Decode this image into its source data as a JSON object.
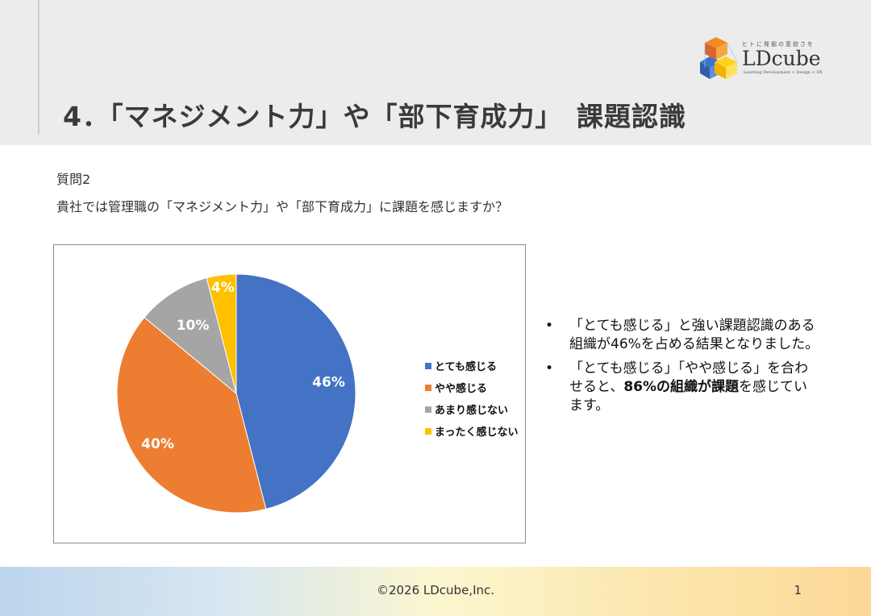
{
  "slide": {
    "title": "4．「マネジメント力」や「部下育成力」　課題認識",
    "logo": {
      "name": "LDcube",
      "tagline": "ヒトに発掘の意欲さを",
      "sub": "Learning Development × Design × DX"
    },
    "question_label": "質問2",
    "question_text": "貴社では管理職の「マネジメント力」や「部下育成力」に課題を感じますか？",
    "bullets": [
      {
        "marker": "•",
        "parts": [
          {
            "text": "「とても感じる」と強い課題認識のある組織が46%を占める結果となりました。",
            "bold": false
          }
        ]
      },
      {
        "marker": "•",
        "parts": [
          {
            "text": "「とても感じる」「やや感じる」を合わせると、",
            "bold": false
          },
          {
            "text": "86%の組織が課題",
            "bold": true
          },
          {
            "text": "を感じています。",
            "bold": false
          }
        ]
      }
    ],
    "footer": {
      "copyright": "©2026 LDcube,Inc.",
      "page": "1"
    }
  },
  "colors": {
    "blue": "#4472C4",
    "orange": "#ED7D31",
    "gray": "#A5A5A5",
    "gold": "#FFC000"
  },
  "chart_data": {
    "type": "pie",
    "title": "",
    "categories": [
      "とても感じる",
      "やや感じる",
      "あまり感じない",
      "まったく感じない"
    ],
    "values": [
      46,
      40,
      10,
      4
    ],
    "labels": [
      "46%",
      "40%",
      "10%",
      "4%"
    ],
    "colors": [
      "#4472C4",
      "#ED7D31",
      "#A5A5A5",
      "#FFC000"
    ],
    "legend": "right"
  }
}
